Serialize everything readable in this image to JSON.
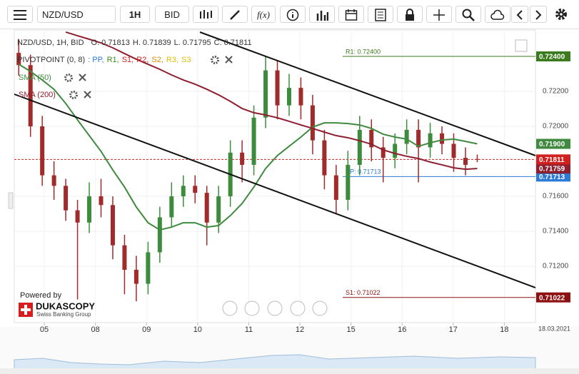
{
  "toolbar": {
    "symbol": "NZD/USD",
    "period": "1H",
    "side": "BID",
    "fx": "f(x)"
  },
  "chart_data": {
    "type": "candlestick",
    "header_label": "NZD/USD, 1H, BID",
    "ohlc_labels": [
      "O.",
      "H.",
      "L.",
      "C."
    ],
    "indicators": {
      "pivot_label": "PIVOTPOINT (0, 8)",
      "pivot_components": [
        {
          "label": ": PP,",
          "color": "#2b7bd6"
        },
        {
          "label": "R1,",
          "color": "#3c8c1e"
        },
        {
          "label": "S1,",
          "color": "#cc2222"
        },
        {
          "label": "R2,",
          "color": "#cc2222"
        },
        {
          "label": "S2,",
          "color": "#e08a00"
        },
        {
          "label": "R3,",
          "color": "#e0c000"
        },
        {
          "label": "S3",
          "color": "#e0c000"
        }
      ]
    },
    "x": [
      -0.5,
      -0.27,
      -0.04,
      0.19,
      0.42,
      0.65,
      0.88,
      1.11,
      1.34,
      1.57,
      1.8,
      2.03,
      2.26,
      2.49,
      2.72,
      2.95,
      3.18,
      3.41,
      3.64,
      3.87,
      4.1,
      4.33,
      4.56,
      4.79,
      5.02,
      5.25,
      5.48,
      5.71,
      5.94,
      6.17,
      6.4,
      6.63,
      6.86,
      7.09,
      7.32,
      7.55,
      7.78,
      8.01,
      8.24,
      8.47
    ],
    "candles": {
      "open": [
        0.7242,
        0.7235,
        0.72,
        0.7172,
        0.7166,
        0.7152,
        0.7145,
        0.716,
        0.7155,
        0.7132,
        0.7118,
        0.711,
        0.7128,
        0.7148,
        0.716,
        0.7166,
        0.7162,
        0.7145,
        0.716,
        0.7185,
        0.7178,
        0.7205,
        0.7232,
        0.7212,
        0.7222,
        0.7212,
        0.7192,
        0.7172,
        0.7158,
        0.7178,
        0.7198,
        0.7188,
        0.7182,
        0.719,
        0.7198,
        0.7188,
        0.7196,
        0.719,
        0.7182,
        0.71813
      ],
      "high": [
        0.725,
        0.7241,
        0.7206,
        0.718,
        0.717,
        0.7158,
        0.7168,
        0.717,
        0.716,
        0.7138,
        0.7126,
        0.7134,
        0.7154,
        0.7168,
        0.7172,
        0.7172,
        0.7166,
        0.7166,
        0.7192,
        0.7192,
        0.7212,
        0.724,
        0.7238,
        0.723,
        0.7228,
        0.7218,
        0.7198,
        0.7178,
        0.7186,
        0.7206,
        0.7204,
        0.7194,
        0.7196,
        0.7204,
        0.7204,
        0.7202,
        0.72,
        0.7196,
        0.7188,
        0.71839
      ],
      "low": [
        0.7229,
        0.7194,
        0.7166,
        0.7158,
        0.7146,
        0.7101,
        0.7139,
        0.7148,
        0.7124,
        0.7104,
        0.71,
        0.7104,
        0.7122,
        0.7142,
        0.7154,
        0.7156,
        0.7132,
        0.7139,
        0.7154,
        0.7168,
        0.7172,
        0.7199,
        0.7204,
        0.7206,
        0.7204,
        0.7184,
        0.7164,
        0.715,
        0.7152,
        0.7172,
        0.718,
        0.7168,
        0.7176,
        0.7184,
        0.7168,
        0.7182,
        0.7184,
        0.7174,
        0.7172,
        0.71795
      ],
      "close": [
        0.7235,
        0.72,
        0.7172,
        0.7166,
        0.7152,
        0.7145,
        0.716,
        0.7155,
        0.7132,
        0.7118,
        0.711,
        0.7128,
        0.7148,
        0.716,
        0.7166,
        0.7162,
        0.7145,
        0.716,
        0.7185,
        0.7178,
        0.7205,
        0.7232,
        0.7212,
        0.7222,
        0.7212,
        0.7192,
        0.7172,
        0.7158,
        0.7178,
        0.7198,
        0.7188,
        0.7182,
        0.719,
        0.7198,
        0.7188,
        0.7196,
        0.719,
        0.7182,
        0.7178,
        0.71811
      ],
      "up_color": "#3d8b3d",
      "down_color": "#a12a2a"
    },
    "sma": [
      {
        "name": "SMA (50)",
        "color": "#3f8a3f",
        "tag": "0.71900",
        "values": [
          0.72355,
          0.72314,
          0.72265,
          0.72212,
          0.72131,
          0.72037,
          0.71947,
          0.71857,
          0.71751,
          0.71653,
          0.71539,
          0.71449,
          0.71408,
          0.71424,
          0.71449,
          0.71449,
          0.71424,
          0.71433,
          0.7149,
          0.71559,
          0.71653,
          0.71759,
          0.71833,
          0.71886,
          0.71939,
          0.71996,
          0.7202,
          0.7202,
          0.72016,
          0.72008,
          0.71988,
          0.71955,
          0.71939,
          0.71927,
          0.71886,
          0.71906,
          0.71922,
          0.71927,
          0.71914,
          0.719
        ]
      },
      {
        "name": "SMA (200)",
        "color": "#8e1f2f",
        "values": [
          null,
          null,
          null,
          null,
          0.72539,
          0.72518,
          0.72498,
          0.72477,
          0.72449,
          0.72416,
          0.72384,
          0.72355,
          0.72326,
          0.72294,
          0.72265,
          0.72241,
          0.72212,
          0.7218,
          0.72143,
          0.72102,
          0.72078,
          0.72065,
          0.72049,
          0.72029,
          0.72008,
          0.71988,
          0.71967,
          0.71947,
          0.71935,
          0.71918,
          0.71898,
          0.71865,
          0.71845,
          0.71829,
          0.71816,
          0.71796,
          0.7178,
          0.71763,
          0.71755,
          0.71759
        ]
      }
    ],
    "levels": [
      {
        "label": "R1: 0.72400",
        "value": 0.724,
        "tag": "0.72400",
        "color": "#3c7a1e"
      },
      {
        "label": "PP: 0.71713",
        "value": 0.71713,
        "tag": "0.71713",
        "color": "#2b7bd6"
      },
      {
        "label": "S1: 0.71022",
        "value": 0.71022,
        "tag": "0.71022",
        "color": "#8e1010"
      }
    ],
    "price_color": "#d02020",
    "xlim": [
      -0.587,
      9.609
    ],
    "xticks": [
      {
        "value": 0,
        "label": "05"
      },
      {
        "value": 1,
        "label": "08"
      },
      {
        "value": 2,
        "label": "09"
      },
      {
        "value": 3,
        "label": "10"
      },
      {
        "value": 4,
        "label": "11"
      },
      {
        "value": 5,
        "label": "12"
      },
      {
        "value": 6,
        "label": "15"
      },
      {
        "value": 7,
        "label": "16"
      },
      {
        "value": 8,
        "label": "17"
      },
      {
        "value": 9,
        "label": "18"
      }
    ],
    "date_label": "18.03.2021",
    "ylim": [
      0.70878,
      0.72551
    ],
    "yticks": [
      {
        "value": 0.712,
        "label": "0.71200"
      },
      {
        "value": 0.714,
        "label": "0.71400"
      },
      {
        "value": 0.716,
        "label": "0.71600"
      },
      {
        "value": 0.72,
        "label": "0.72000"
      },
      {
        "value": 0.722,
        "label": "0.72200"
      }
    ],
    "grid": true
  },
  "branding": {
    "powered": "Powered by",
    "name": "DUKASCOPY",
    "sub": "Swiss Banking Group"
  }
}
